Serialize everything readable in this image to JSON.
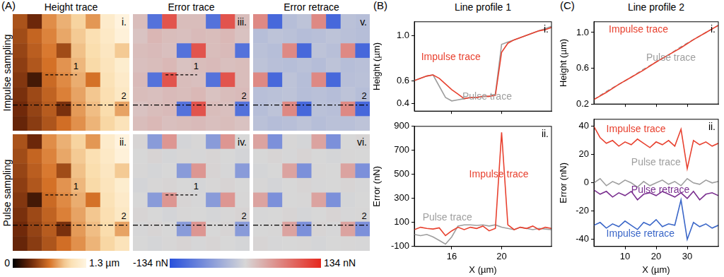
{
  "panel_A": {
    "label": "(A)",
    "column_titles": [
      "Height trace",
      "Error trace",
      "Error retrace"
    ],
    "row_titles": [
      "Impulse sampling",
      "Pulse sampling"
    ],
    "profile_lines": [
      "1",
      "2"
    ],
    "colorbars": [
      {
        "range": [
          0,
          1.3
        ],
        "ticks": [
          0,
          {
            "value": 1.3,
            "label": "1.3 µm"
          }
        ]
      },
      {
        "range": [
          -134,
          134
        ],
        "ticks": [
          {
            "value": -134,
            "label": "-134 nN"
          },
          {
            "value": 134,
            "label": "134 nN"
          }
        ]
      }
    ],
    "images": [
      [
        {
          "label": "i.",
          "profile_lines": [
            "1",
            "2"
          ],
          "cells": [
            [
              0.51,
              0.32,
              0.73,
              0.84,
              0.95,
              0.76,
              1.17,
              1.28
            ],
            [
              0.48,
              0.59,
              0.7,
              0.81,
              0.92,
              1.03,
              1.14,
              1.25
            ],
            [
              0.45,
              0.56,
              0.67,
              0.48,
              0.89,
              1.0,
              1.11,
              0.92
            ],
            [
              0.42,
              0.53,
              0.64,
              0.75,
              0.86,
              0.97,
              1.08,
              1.19
            ],
            [
              0.39,
              0.2,
              0.61,
              0.72,
              0.83,
              0.64,
              1.05,
              1.16
            ],
            [
              0.36,
              0.47,
              0.58,
              0.69,
              0.8,
              0.91,
              1.02,
              1.13
            ],
            [
              0.33,
              0.44,
              0.55,
              0.36,
              0.77,
              0.88,
              0.99,
              0.8
            ],
            [
              0.3,
              0.41,
              0.52,
              0.63,
              0.74,
              0.85,
              0.96,
              1.07
            ]
          ]
        },
        {
          "label": "iii.",
          "profile_lines": [
            "1",
            "2"
          ],
          "cells": [
            [
              20,
              -100,
              100,
              20,
              20,
              -100,
              100,
              20
            ],
            [
              15,
              25,
              20,
              18,
              22,
              20,
              24,
              16
            ],
            [
              20,
              22,
              18,
              -100,
              100,
              20,
              22,
              -100
            ],
            [
              18,
              20,
              24,
              16,
              20,
              22,
              18,
              20
            ],
            [
              22,
              -100,
              100,
              20,
              18,
              -100,
              100,
              20
            ],
            [
              20,
              18,
              22,
              20,
              24,
              16,
              20,
              22
            ],
            [
              16,
              20,
              22,
              -100,
              100,
              20,
              18,
              -100
            ],
            [
              20,
              24,
              18,
              20,
              22,
              18,
              20,
              16
            ]
          ]
        },
        {
          "label": "v.",
          "profile_lines": [
            "2"
          ],
          "cells": [
            [
              60,
              -110,
              -25,
              -20,
              60,
              -110,
              -22,
              -25
            ],
            [
              -25,
              -20,
              -22,
              -26,
              -24,
              -20,
              -23,
              -25
            ],
            [
              -22,
              -25,
              60,
              -110,
              -20,
              -24,
              60,
              -110
            ],
            [
              -20,
              -24,
              -25,
              -22,
              -26,
              -20,
              -25,
              -23
            ],
            [
              60,
              -110,
              -20,
              -25,
              60,
              -110,
              -24,
              -22
            ],
            [
              -24,
              -22,
              -20,
              -25,
              -23,
              -26,
              -20,
              -25
            ],
            [
              -25,
              -20,
              60,
              -110,
              -22,
              -24,
              60,
              -110
            ],
            [
              -22,
              -26,
              -24,
              -20,
              -25,
              -22,
              -23,
              -20
            ]
          ]
        }
      ],
      [
        {
          "label": "ii.",
          "profile_lines": [
            "1",
            "2"
          ],
          "cells": [
            [
              0.51,
              0.32,
              0.73,
              0.84,
              0.95,
              0.76,
              1.17,
              1.28
            ],
            [
              0.48,
              0.59,
              0.7,
              0.81,
              0.92,
              1.03,
              1.14,
              1.25
            ],
            [
              0.45,
              0.56,
              0.67,
              0.48,
              0.89,
              1.0,
              1.11,
              0.92
            ],
            [
              0.42,
              0.53,
              0.64,
              0.75,
              0.86,
              0.97,
              1.08,
              1.19
            ],
            [
              0.39,
              0.2,
              0.61,
              0.72,
              0.83,
              0.64,
              1.05,
              1.16
            ],
            [
              0.36,
              0.47,
              0.58,
              0.69,
              0.8,
              0.91,
              1.02,
              1.13
            ],
            [
              0.33,
              0.44,
              0.55,
              0.36,
              0.77,
              0.88,
              0.99,
              0.8
            ],
            [
              0.3,
              0.41,
              0.52,
              0.63,
              0.74,
              0.85,
              0.96,
              1.07
            ]
          ]
        },
        {
          "label": "iv.",
          "profile_lines": [
            "1",
            "2"
          ],
          "cells": [
            [
              2,
              -60,
              50,
              -3,
              1,
              -60,
              50,
              0
            ],
            [
              0,
              3,
              -2,
              1,
              -1,
              2,
              0,
              -3
            ],
            [
              1,
              -2,
              0,
              -60,
              50,
              3,
              -1,
              -60
            ],
            [
              -3,
              1,
              2,
              0,
              -2,
              1,
              3,
              0
            ],
            [
              0,
              -60,
              50,
              2,
              -1,
              -60,
              50,
              1
            ],
            [
              2,
              0,
              -3,
              1,
              0,
              -2,
              1,
              3
            ],
            [
              -1,
              2,
              0,
              -60,
              50,
              0,
              2,
              -60
            ],
            [
              0,
              -2,
              1,
              3,
              -1,
              2,
              0,
              -2
            ]
          ]
        },
        {
          "label": "vi.",
          "profile_lines": [
            "2"
          ],
          "cells": [
            [
              40,
              -70,
              1,
              -2,
              40,
              -70,
              0,
              2
            ],
            [
              0,
              2,
              -1,
              3,
              0,
              -2,
              1,
              0
            ],
            [
              -2,
              0,
              40,
              -70,
              1,
              0,
              40,
              -70
            ],
            [
              1,
              -3,
              0,
              2,
              -1,
              0,
              2,
              -1
            ],
            [
              40,
              -70,
              0,
              1,
              40,
              -70,
              -2,
              0
            ],
            [
              -1,
              0,
              2,
              -2,
              0,
              3,
              -1,
              1
            ],
            [
              0,
              1,
              40,
              -70,
              2,
              -1,
              40,
              -70
            ],
            [
              2,
              -1,
              0,
              1,
              -2,
              0,
              1,
              -1
            ]
          ]
        }
      ]
    ]
  },
  "chart_data": [
    {
      "type": "line",
      "panel": "(B)",
      "title": "Line profile 1",
      "label": "i.",
      "ylabel": "Height (µm)",
      "x": [
        13,
        13.5,
        14,
        14.5,
        15,
        15.5,
        16,
        16.5,
        17,
        17.5,
        18,
        18.5,
        19,
        19.5,
        20,
        20.5,
        21,
        21.5,
        22,
        22.5,
        23,
        23.5,
        24
      ],
      "xlim": [
        13,
        24
      ],
      "xticks": [
        16,
        20
      ],
      "ylim": [
        0.33,
        1.12
      ],
      "yticks": [
        0.4,
        0.6,
        {
          "value": 1,
          "label": "1.0"
        }
      ],
      "tick_labels": "y",
      "series": [
        {
          "name": "Impulse trace",
          "color": "#e8412f",
          "values": [
            0.6,
            0.62,
            0.64,
            0.65,
            0.62,
            0.57,
            0.52,
            0.48,
            0.44,
            0.45,
            0.45,
            0.46,
            0.46,
            0.47,
            0.85,
            0.93,
            0.96,
            0.98,
            1.0,
            1.02,
            1.04,
            1.05,
            1.07
          ]
        },
        {
          "name": "Pulse trace",
          "color": "#9e9e9e",
          "values": [
            0.6,
            0.62,
            0.64,
            0.65,
            0.55,
            0.45,
            0.42,
            0.43,
            0.44,
            0.45,
            0.45,
            0.46,
            0.46,
            0.48,
            0.92,
            0.94,
            0.96,
            0.98,
            1.0,
            1.02,
            1.04,
            1.06,
            1.08
          ]
        }
      ]
    },
    {
      "type": "line",
      "label": "ii.",
      "xlabel": "X (µm)",
      "ylabel": "Error (nN)",
      "x": [
        13,
        13.5,
        14,
        14.5,
        15,
        15.5,
        16,
        16.5,
        17,
        17.5,
        18,
        18.5,
        19,
        19.5,
        20,
        20.5,
        21,
        21.5,
        22,
        22.5,
        23,
        23.5,
        24
      ],
      "xlim": [
        13,
        24
      ],
      "xticks": [
        16,
        20
      ],
      "ylim": [
        -100,
        900
      ],
      "yticks": [
        -100,
        100,
        300,
        500,
        700,
        900
      ],
      "series": [
        {
          "name": "Impulse trace",
          "color": "#e8412f",
          "values": [
            40,
            60,
            50,
            45,
            55,
            -10,
            30,
            60,
            40,
            60,
            50,
            70,
            30,
            50,
            850,
            80,
            40,
            60,
            50,
            70,
            40,
            60,
            50
          ]
        },
        {
          "name": "Pulse trace",
          "color": "#9e9e9e",
          "values": [
            0,
            -10,
            0,
            -20,
            -50,
            -80,
            -20,
            70,
            80,
            80,
            75,
            80,
            70,
            80,
            60,
            50,
            40,
            60,
            50,
            40,
            50,
            45,
            40
          ]
        }
      ]
    },
    {
      "type": "line",
      "panel": "(C)",
      "title": "Line profile 2",
      "label": "i.",
      "ylabel": "Height (µm)",
      "x": [
        0,
        4,
        8,
        12,
        16,
        20,
        24,
        28,
        32,
        36,
        40
      ],
      "xlim": [
        0,
        40
      ],
      "xticks": [
        10,
        20,
        30
      ],
      "ylim": [
        0.2,
        1.12
      ],
      "yticks": [
        0.2,
        0.6,
        {
          "value": 1,
          "label": "1.0"
        }
      ],
      "tick_labels": "y",
      "series": [
        {
          "name": "Impulse trace",
          "color": "#e8412f",
          "values": [
            0.25,
            0.33,
            0.42,
            0.5,
            0.58,
            0.67,
            0.75,
            0.83,
            0.92,
            1.0,
            1.08
          ]
        },
        {
          "name": "Pulse trace",
          "color": "#9e9e9e",
          "line_style": "dashed",
          "values": [
            0.25,
            0.34,
            0.42,
            0.5,
            0.59,
            0.67,
            0.75,
            0.84,
            0.92,
            1.0,
            1.08
          ]
        }
      ]
    },
    {
      "type": "line",
      "label": "ii.",
      "xlabel": "X (µm)",
      "ylabel": "Error (nN)",
      "x": [
        0,
        2,
        4,
        6,
        8,
        10,
        12,
        14,
        16,
        18,
        20,
        22,
        24,
        26,
        28,
        30,
        32,
        34,
        36,
        38,
        40
      ],
      "xlim": [
        0,
        40
      ],
      "xticks": [
        10,
        20,
        30
      ],
      "ylim": [
        -45,
        45
      ],
      "yticks": [
        -40,
        -20,
        0,
        20,
        40
      ],
      "series": [
        {
          "name": "Impulse trace",
          "color": "#e8412f",
          "values": [
            40,
            32,
            28,
            30,
            26,
            29,
            27,
            31,
            28,
            25,
            29,
            27,
            30,
            26,
            38,
            10,
            30,
            27,
            29,
            26,
            28
          ]
        },
        {
          "name": "Pulse trace",
          "color": "#9e9e9e",
          "values": [
            0,
            3,
            -2,
            1,
            -1,
            2,
            0,
            -3,
            1,
            -2,
            0,
            2,
            -1,
            1,
            -2,
            3,
            0,
            -1,
            2,
            0,
            1
          ]
        },
        {
          "name": "Pulse retrace",
          "color": "#7a2f8f",
          "values": [
            -5,
            -8,
            -6,
            -10,
            -7,
            -9,
            -6,
            -12,
            -8,
            -7,
            -9,
            -6,
            -8,
            -10,
            -7,
            -11,
            -6,
            -12,
            -8,
            -7,
            -9
          ]
        },
        {
          "name": "Impulse retrace",
          "color": "#3a66c8",
          "values": [
            -30,
            -28,
            -32,
            -29,
            -31,
            -27,
            -30,
            -33,
            -28,
            -30,
            -26,
            -31,
            -29,
            -30,
            -12,
            -40,
            -28,
            -31,
            -29,
            -32,
            -30
          ]
        }
      ]
    }
  ]
}
